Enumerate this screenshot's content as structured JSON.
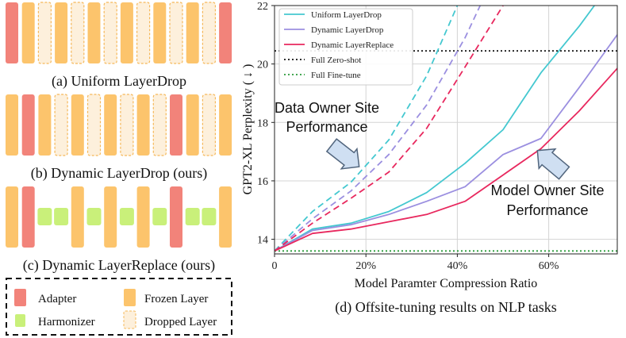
{
  "colors": {
    "adapter": "#f2837a",
    "frozen": "#fcc46c",
    "dropped_fill": "#fdf0dc",
    "dropped_border": "#f5b85a",
    "harmonizer": "#c9f07a",
    "uniform": "#44c8d0",
    "dynamic_drop": "#9b8fe0",
    "dynamic_replace": "#e8285e",
    "zero_shot": "#111111",
    "fine_tune": "#2a9a3a",
    "grid": "#d4d4d4",
    "arrow_fill": "#cfdff2",
    "arrow_stroke": "#51657d"
  },
  "schematics": [
    {
      "caption": "(a) Uniform LayerDrop",
      "layers": [
        "A",
        "F",
        "D",
        "F",
        "D",
        "F",
        "D",
        "F",
        "D",
        "F",
        "D",
        "F",
        "D",
        "A"
      ]
    },
    {
      "caption": "(b) Dynamic LayerDrop (ours)",
      "layers": [
        "F",
        "A",
        "F",
        "D",
        "F",
        "D",
        "F",
        "D",
        "F",
        "D",
        "A",
        "F",
        "D",
        "F"
      ]
    },
    {
      "caption": "(c) Dynamic LayerReplace (ours)",
      "layers": [
        "F",
        "A",
        "H",
        "H",
        "F",
        "H",
        "F",
        "H",
        "F",
        "H",
        "A",
        "H",
        "H",
        "F"
      ]
    }
  ],
  "layer_legend": {
    "adapter": "Adapter",
    "frozen": "Frozen Layer",
    "harmonizer": "Harmonizer",
    "dropped": "Dropped Layer"
  },
  "chart_caption": "(d) Offsite-tuning results on NLP tasks",
  "annotations": {
    "data_owner": [
      "Data Owner Site",
      "Performance"
    ],
    "model_owner": [
      "Model Owner Site",
      "Performance"
    ]
  },
  "chart_data": {
    "type": "line",
    "xlabel": "Model Paramter Compression Ratio",
    "ylabel": "GPT2-XL Perplexity ( ↓ )",
    "xlim": [
      0,
      0.75
    ],
    "ylim": [
      13.5,
      22
    ],
    "xticks": [
      0,
      0.2,
      0.4,
      0.6
    ],
    "xtick_labels": [
      "0",
      "20%",
      "40%",
      "60%"
    ],
    "yticks": [
      14,
      16,
      18,
      20,
      22
    ],
    "ytick_labels": [
      "14",
      "16",
      "18",
      "20",
      "22"
    ],
    "grid": true,
    "legend_placement": "top-left",
    "series": [
      {
        "name": "Uniform LayerDrop",
        "color_key": "uniform",
        "style": "solid",
        "x": [
          0,
          0.083,
          0.167,
          0.25,
          0.333,
          0.417,
          0.5,
          0.583,
          0.667,
          0.7
        ],
        "y": [
          13.6,
          14.35,
          14.55,
          14.95,
          15.6,
          16.6,
          17.75,
          19.7,
          21.3,
          22.0
        ]
      },
      {
        "name": "Dynamic LayerDrop",
        "color_key": "dynamic_drop",
        "style": "solid",
        "x": [
          0,
          0.083,
          0.167,
          0.25,
          0.333,
          0.417,
          0.5,
          0.583,
          0.667,
          0.75
        ],
        "y": [
          13.6,
          14.3,
          14.5,
          14.85,
          15.3,
          15.8,
          16.9,
          17.45,
          19.2,
          21.0
        ]
      },
      {
        "name": "Dynamic LayerReplace",
        "color_key": "dynamic_replace",
        "style": "solid",
        "x": [
          0,
          0.083,
          0.167,
          0.25,
          0.333,
          0.417,
          0.5,
          0.583,
          0.667,
          0.75
        ],
        "y": [
          13.6,
          14.2,
          14.35,
          14.6,
          14.85,
          15.3,
          16.2,
          17.1,
          18.4,
          19.85
        ]
      },
      {
        "name": "Full Zero-shot",
        "color_key": "zero_shot",
        "style": "dotted",
        "hline": 20.45,
        "x": [
          0,
          0.75
        ],
        "y": [
          20.45,
          20.45
        ]
      },
      {
        "name": "Full Fine-tune",
        "color_key": "fine_tune",
        "style": "dotted",
        "hline": 13.6,
        "x": [
          0,
          0.75
        ],
        "y": [
          13.6,
          13.6
        ]
      },
      {
        "name": "",
        "color_key": "uniform",
        "style": "dashed",
        "x": [
          0,
          0.083,
          0.167,
          0.25,
          0.333,
          0.4
        ],
        "y": [
          13.6,
          14.95,
          15.95,
          17.4,
          19.6,
          22.0
        ]
      },
      {
        "name": "",
        "color_key": "dynamic_drop",
        "style": "dashed",
        "x": [
          0,
          0.083,
          0.167,
          0.25,
          0.333,
          0.417,
          0.45
        ],
        "y": [
          13.6,
          14.7,
          15.65,
          16.9,
          18.6,
          20.9,
          22.0
        ]
      },
      {
        "name": "",
        "color_key": "dynamic_replace",
        "style": "dashed",
        "x": [
          0,
          0.083,
          0.167,
          0.25,
          0.333,
          0.417,
          0.5
        ],
        "y": [
          13.6,
          14.55,
          15.4,
          16.3,
          17.8,
          19.9,
          22.0
        ]
      }
    ]
  }
}
